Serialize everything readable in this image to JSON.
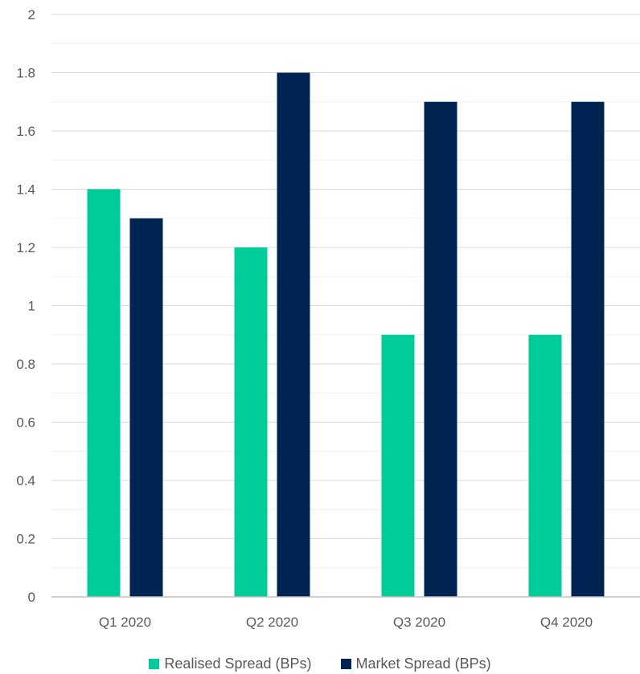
{
  "chart_data": {
    "type": "bar",
    "title": "",
    "xlabel": "",
    "ylabel": "",
    "categories": [
      "Q1 2020",
      "Q2 2020",
      "Q3 2020",
      "Q4 2020"
    ],
    "series": [
      {
        "name": "Realised Spread (BPs)",
        "color": "#00CC99",
        "values": [
          1.4,
          1.2,
          0.9,
          0.9
        ]
      },
      {
        "name": "Market Spread (BPs)",
        "color": "#002452",
        "values": [
          1.3,
          1.8,
          1.7,
          1.7
        ]
      }
    ],
    "ylim": [
      0,
      2
    ],
    "y_ticks": [
      "0",
      "0.2",
      "0.4",
      "0.6",
      "0.8",
      "1",
      "1.2",
      "1.4",
      "1.6",
      "1.8",
      "2"
    ],
    "grid": true,
    "legend_position": "bottom"
  }
}
